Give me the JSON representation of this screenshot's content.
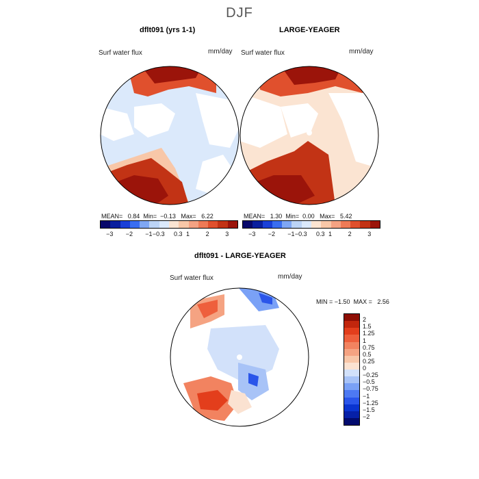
{
  "season": "DJF",
  "units": "mm/day",
  "variable": "Surf water flux",
  "colors": {
    "full_scale": [
      "#08086a",
      "#0a1f9e",
      "#1a40d8",
      "#3a6ef0",
      "#7fa7f4",
      "#bcd4f6",
      "#dbe9fb",
      "#fbe4d2",
      "#f8c7a8",
      "#f4a283",
      "#ee7a56",
      "#e0502d",
      "#c23315",
      "#9b140a"
    ],
    "diff_scale": [
      "#020b6e",
      "#0620a8",
      "#0a34d0",
      "#2a55ea",
      "#4d79f2",
      "#7aa1f6",
      "#a8c3f7",
      "#d2e1fa",
      "#fbe2d1",
      "#f8c6a8",
      "#f5a382",
      "#f28360",
      "#ee5f3c",
      "#e33e1c",
      "#c2260d",
      "#8e0e04"
    ],
    "land": "#ffffff",
    "ocean_pos": "#f8c7a8",
    "ocean_neg": "#dbe9fb"
  },
  "panels": [
    {
      "title": "dflt091 (yrs 1-1)",
      "mean_label": "MEAN=",
      "mean": "0.84",
      "min_label": "Min=",
      "min": "−0.13",
      "max_label": "Max=",
      "max": "6.22"
    },
    {
      "title": "LARGE-YEAGER",
      "mean_label": "MEAN=",
      "mean": "1.30",
      "min_label": "Min=",
      "min": "0.00",
      "max_label": "Max=",
      "max": "5.42"
    }
  ],
  "full_ticks": [
    "−3",
    "−2",
    "−1",
    "−0.3",
    "0.3",
    "1",
    "2",
    "3"
  ],
  "diff": {
    "title": "dflt091 - LARGE-YEAGER",
    "min_label": "MIN =",
    "min": "−1.50",
    "max_label": "MAX =",
    "max": "2.56",
    "ticks": [
      "2",
      "1.5",
      "1.25",
      "1",
      "0.75",
      "0.5",
      "0.25",
      "0",
      "−0.25",
      "−0.5",
      "−0.75",
      "−1",
      "−1.25",
      "−1.5",
      "−2"
    ]
  }
}
